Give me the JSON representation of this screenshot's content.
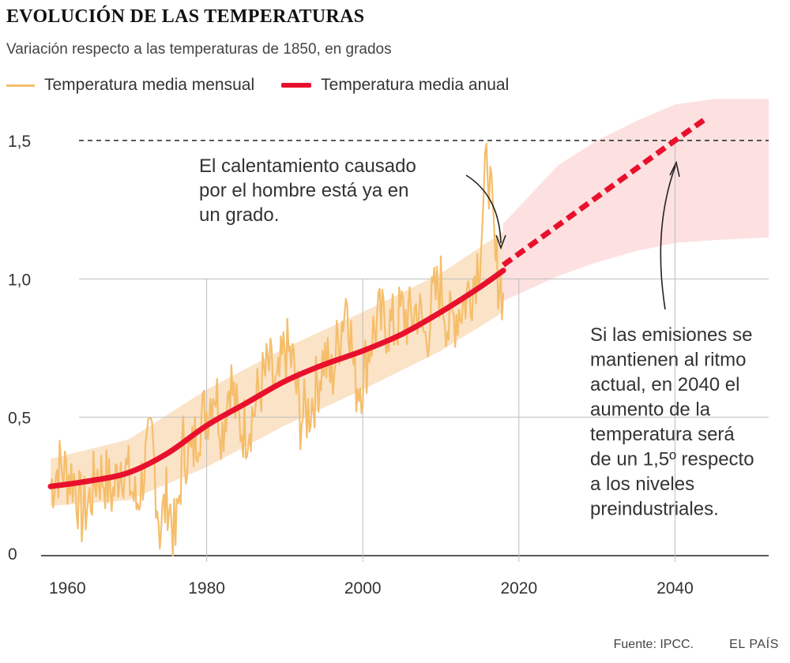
{
  "header": {
    "title": "EVOLUCIÓN DE LAS TEMPERATURAS",
    "subtitle": "Variación respecto a las temperaturas de 1850, en grados"
  },
  "colors": {
    "monthly": "#f5be6b",
    "annual": "#e8112d",
    "band_observed": "#fbe3c8",
    "band_projection": "#fde1e1",
    "grid": "#bdbdbd",
    "text": "#333333"
  },
  "chart_data": {
    "type": "line",
    "xlim": [
      1960,
      2052
    ],
    "ylim": [
      0,
      1.6
    ],
    "x_ticks": [
      {
        "value": 1960,
        "label": "1960"
      },
      {
        "value": 1980,
        "label": "1980"
      },
      {
        "value": 2000,
        "label": "2000"
      },
      {
        "value": 2020,
        "label": "2020"
      },
      {
        "value": 2040,
        "label": "2040"
      }
    ],
    "y_ticks": [
      {
        "value": 0,
        "label": "0"
      },
      {
        "value": 0.5,
        "label": "0,5"
      },
      {
        "value": 1.0,
        "label": "1,0"
      },
      {
        "value": 1.5,
        "label": "1,5"
      }
    ],
    "reference_line": {
      "y": 1.5,
      "style": "dashed"
    },
    "series": [
      {
        "name": "Temperatura media mensual",
        "kind": "monthly",
        "x": [
          1960,
          1961,
          1962,
          1963,
          1964,
          1965,
          1966,
          1967,
          1968,
          1969,
          1970,
          1971,
          1972,
          1973,
          1974,
          1975,
          1976,
          1977,
          1978,
          1979,
          1980,
          1981,
          1982,
          1983,
          1984,
          1985,
          1986,
          1987,
          1988,
          1989,
          1990,
          1991,
          1992,
          1993,
          1994,
          1995,
          1996,
          1997,
          1998,
          1999,
          2000,
          2001,
          2002,
          2003,
          2004,
          2005,
          2006,
          2007,
          2008,
          2009,
          2010,
          2011,
          2012,
          2013,
          2014,
          2015,
          2016,
          2017,
          2018
        ],
        "y": [
          0.25,
          0.32,
          0.3,
          0.28,
          0.15,
          0.2,
          0.3,
          0.28,
          0.22,
          0.35,
          0.28,
          0.18,
          0.32,
          0.42,
          0.1,
          0.22,
          0.05,
          0.4,
          0.35,
          0.48,
          0.52,
          0.62,
          0.45,
          0.65,
          0.48,
          0.46,
          0.52,
          0.62,
          0.68,
          0.58,
          0.75,
          0.7,
          0.5,
          0.52,
          0.6,
          0.72,
          0.64,
          0.8,
          0.95,
          0.62,
          0.64,
          0.78,
          0.85,
          0.84,
          0.82,
          0.88,
          0.85,
          0.9,
          0.78,
          0.92,
          0.98,
          0.82,
          0.88,
          0.92,
          0.98,
          1.1,
          1.45,
          1.05,
          0.95
        ]
      },
      {
        "name": "Temperatura media anual",
        "kind": "annual",
        "x": [
          1960,
          1965,
          1970,
          1975,
          1980,
          1985,
          1990,
          1995,
          2000,
          2005,
          2010,
          2015,
          2018
        ],
        "y": [
          0.25,
          0.27,
          0.3,
          0.37,
          0.47,
          0.55,
          0.63,
          0.69,
          0.74,
          0.8,
          0.88,
          0.97,
          1.03
        ]
      },
      {
        "name": "",
        "kind": "projection",
        "x": [
          2018,
          2040,
          2044
        ],
        "y": [
          1.05,
          1.5,
          1.58
        ]
      }
    ],
    "band_observed": {
      "x": [
        1960,
        1970,
        1980,
        1990,
        2000,
        2010,
        2018
      ],
      "upper": [
        0.35,
        0.42,
        0.6,
        0.75,
        0.88,
        1.02,
        1.17
      ],
      "lower": [
        0.18,
        0.2,
        0.32,
        0.47,
        0.6,
        0.74,
        0.88
      ]
    },
    "band_projection": {
      "x": [
        2018,
        2025,
        2030,
        2035,
        2040,
        2045,
        2052
      ],
      "upper": [
        1.2,
        1.41,
        1.5,
        1.57,
        1.63,
        1.65,
        1.65
      ],
      "lower": [
        0.92,
        1.01,
        1.06,
        1.1,
        1.13,
        1.14,
        1.15
      ]
    },
    "annotations": [
      {
        "name": "annotation-human-warming",
        "lines": [
          "El calentamiento causado",
          "por el hombre está ya en",
          "un grado."
        ]
      },
      {
        "name": "annotation-projection",
        "lines": [
          "Si las emisiones se",
          "mantienen al ritmo",
          "actual, en 2040 el",
          "aumento de la",
          "temperatura será",
          "de un 1,5º respecto",
          "a los niveles",
          "preindustriales."
        ]
      }
    ]
  },
  "footer": {
    "source": "Fuente: IPCC.",
    "brand": "EL PAÍS"
  }
}
